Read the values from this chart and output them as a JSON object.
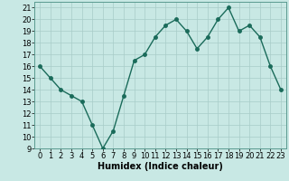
{
  "x": [
    0,
    1,
    2,
    3,
    4,
    5,
    6,
    7,
    8,
    9,
    10,
    11,
    12,
    13,
    14,
    15,
    16,
    17,
    18,
    19,
    20,
    21,
    22,
    23
  ],
  "y": [
    16,
    15,
    14,
    13.5,
    13,
    11,
    9,
    10.5,
    13.5,
    16.5,
    17,
    18.5,
    19.5,
    20,
    19,
    17.5,
    18.5,
    20,
    21,
    19,
    19.5,
    18.5,
    16,
    14
  ],
  "line_color": "#1a6b5a",
  "marker_color": "#1a6b5a",
  "bg_color": "#c8e8e4",
  "grid_color": "#a8ccc8",
  "xlabel": "Humidex (Indice chaleur)",
  "ylim": [
    9,
    21.5
  ],
  "xlim": [
    -0.5,
    23.5
  ],
  "yticks": [
    9,
    10,
    11,
    12,
    13,
    14,
    15,
    16,
    17,
    18,
    19,
    20,
    21
  ],
  "xticks": [
    0,
    1,
    2,
    3,
    4,
    5,
    6,
    7,
    8,
    9,
    10,
    11,
    12,
    13,
    14,
    15,
    16,
    17,
    18,
    19,
    20,
    21,
    22,
    23
  ],
  "xlabel_fontsize": 7,
  "tick_fontsize": 6,
  "line_width": 1.0,
  "marker_size": 2.5
}
